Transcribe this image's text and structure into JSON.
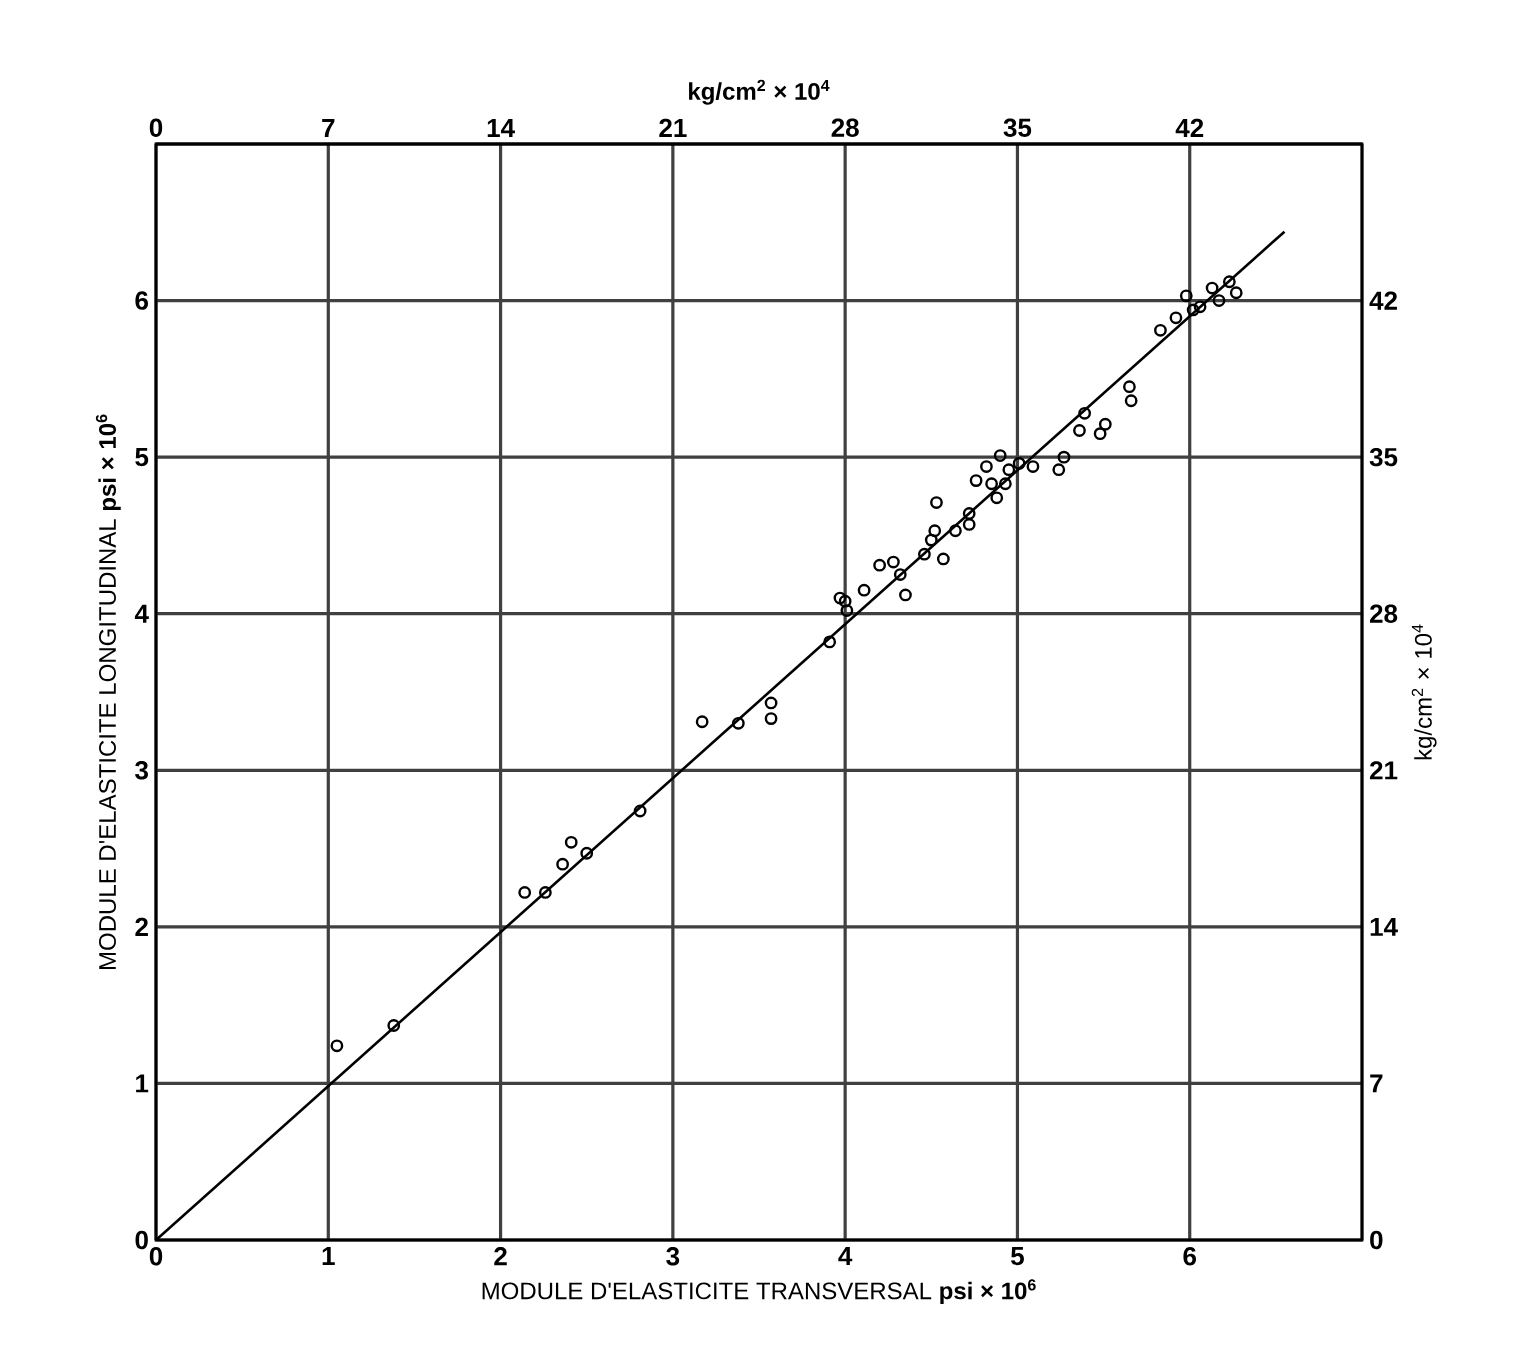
{
  "chart_data": {
    "type": "scatter",
    "xlabel": "MODULE D'ELASTICITE TRANSVERSAL **psi × 10$^{6}$**",
    "ylabel": "MODULE D'ELASTICITE LONGITUDINAL **psi × 10$^{6}$**",
    "x2label": "kg/cm$^{2}$ × 10$^{4}$",
    "y2label": "kg/cm$^{2}$ × 10$^{4}$",
    "xlim": [
      0,
      7
    ],
    "ylim": [
      0,
      7
    ],
    "x2lim": [
      0,
      49
    ],
    "y2lim": [
      0,
      49
    ],
    "xticks": [
      0,
      1,
      2,
      3,
      4,
      5,
      6
    ],
    "yticks": [
      0,
      1,
      2,
      3,
      4,
      5,
      6
    ],
    "x2ticks": [
      0,
      7,
      14,
      21,
      28,
      35,
      42
    ],
    "y2ticks": [
      0,
      7,
      14,
      21,
      28,
      35,
      42
    ],
    "grid": true,
    "marker": "circle",
    "series": [
      {
        "color": "#000000",
        "x": [
          1.05,
          1.38,
          2.14,
          2.26,
          2.36,
          2.41,
          2.5,
          2.81,
          3.17,
          3.38,
          3.57,
          3.57,
          3.91,
          4.0,
          3.97,
          4.01,
          4.11,
          4.2,
          4.28,
          4.32,
          4.35,
          4.46,
          4.5,
          4.57,
          4.52,
          4.53,
          4.64,
          4.72,
          4.72,
          4.76,
          4.82,
          4.85,
          4.88,
          4.9,
          4.95,
          5.01,
          5.09,
          4.93,
          5.24,
          5.27,
          5.36,
          5.39,
          5.48,
          5.51,
          5.65,
          5.66,
          5.83,
          5.92,
          5.98,
          6.02,
          6.06,
          6.13,
          6.17,
          6.23,
          6.27
        ],
        "values": [
          1.24,
          1.37,
          2.22,
          2.22,
          2.4,
          2.54,
          2.47,
          2.74,
          3.31,
          3.3,
          3.43,
          3.33,
          3.82,
          4.08,
          4.1,
          4.02,
          4.15,
          4.31,
          4.33,
          4.25,
          4.12,
          4.38,
          4.47,
          4.35,
          4.53,
          4.71,
          4.53,
          4.64,
          4.57,
          4.85,
          4.94,
          4.83,
          4.74,
          5.01,
          4.92,
          4.96,
          4.94,
          4.83,
          4.92,
          5.0,
          5.17,
          5.28,
          5.15,
          5.21,
          5.45,
          5.36,
          5.81,
          5.89,
          6.03,
          5.94,
          5.96,
          6.08,
          6.0,
          6.12,
          6.05
        ]
      },
      {
        "type": "line",
        "color": "#000000",
        "marker": "none",
        "x": [
          0,
          6.55
        ],
        "values": [
          0,
          6.44
        ]
      }
    ]
  }
}
